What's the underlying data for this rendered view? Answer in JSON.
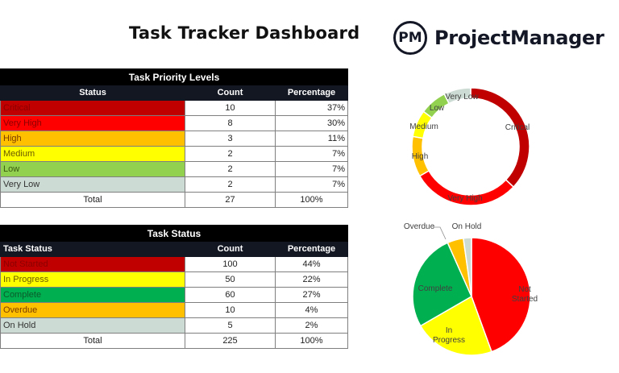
{
  "header": {
    "title": "Task Tracker Dashboard",
    "logo_mark": "PM",
    "logo_text": "ProjectManager"
  },
  "priority_table": {
    "caption": "Task Priority Levels",
    "columns": [
      "Status",
      "Count",
      "Percentage"
    ],
    "rows": [
      {
        "label": "Critical",
        "count": "10",
        "pct": "37%",
        "bg": "#C00000",
        "fg": "#8B0000"
      },
      {
        "label": "Very High",
        "count": "8",
        "pct": "30%",
        "bg": "#FF0000",
        "fg": "#8B0000"
      },
      {
        "label": "High",
        "count": "3",
        "pct": "11%",
        "bg": "#FFC000",
        "fg": "#7a3b00"
      },
      {
        "label": "Medium",
        "count": "2",
        "pct": "7%",
        "bg": "#FFFF00",
        "fg": "#6b5a00"
      },
      {
        "label": "Low",
        "count": "2",
        "pct": "7%",
        "bg": "#92D050",
        "fg": "#3a5a10"
      },
      {
        "label": "Very Low",
        "count": "2",
        "pct": "7%",
        "bg": "#CCDBD3",
        "fg": "#333333"
      }
    ],
    "total": {
      "label": "Total",
      "count": "27",
      "pct": "100%"
    }
  },
  "status_table": {
    "caption": "Task Status",
    "columns": [
      "Task Status",
      "Count",
      "Percentage"
    ],
    "rows": [
      {
        "label": "Not Started",
        "count": "100",
        "pct": "44%",
        "bg": "#C00000",
        "fg": "#8B0000"
      },
      {
        "label": "In Progress",
        "count": "50",
        "pct": "22%",
        "bg": "#FFFF00",
        "fg": "#6b5a00"
      },
      {
        "label": "Complete",
        "count": "60",
        "pct": "27%",
        "bg": "#00B050",
        "fg": "#0b5a2a"
      },
      {
        "label": "Overdue",
        "count": "10",
        "pct": "4%",
        "bg": "#FFC000",
        "fg": "#7a3b00"
      },
      {
        "label": "On Hold",
        "count": "5",
        "pct": "2%",
        "bg": "#CCDBD3",
        "fg": "#333333"
      }
    ],
    "total": {
      "label": "Total",
      "count": "225",
      "pct": "100%"
    }
  },
  "chart_data": [
    {
      "type": "pie",
      "variant": "donut",
      "title": "",
      "categories": [
        "Critical",
        "Very High",
        "High",
        "Medium",
        "Low",
        "Very Low"
      ],
      "values": [
        10,
        8,
        3,
        2,
        2,
        2
      ],
      "colors": [
        "#C00000",
        "#FF0000",
        "#FFC000",
        "#FFFF00",
        "#92D050",
        "#CCDBD3"
      ],
      "data_labels": [
        "Critical",
        "Very High",
        "High",
        "Medium",
        "Low",
        "Very Low"
      ],
      "legend": "none"
    },
    {
      "type": "pie",
      "title": "",
      "categories": [
        "Not Started",
        "In Progress",
        "Complete",
        "Overdue",
        "On Hold"
      ],
      "values": [
        100,
        50,
        60,
        10,
        5
      ],
      "colors": [
        "#FF0000",
        "#FFFF00",
        "#00B050",
        "#FFC000",
        "#CCDBD3"
      ],
      "data_labels": [
        "Not Started",
        "In Progress",
        "Complete",
        "Overdue",
        "On Hold"
      ],
      "legend": "none"
    }
  ]
}
